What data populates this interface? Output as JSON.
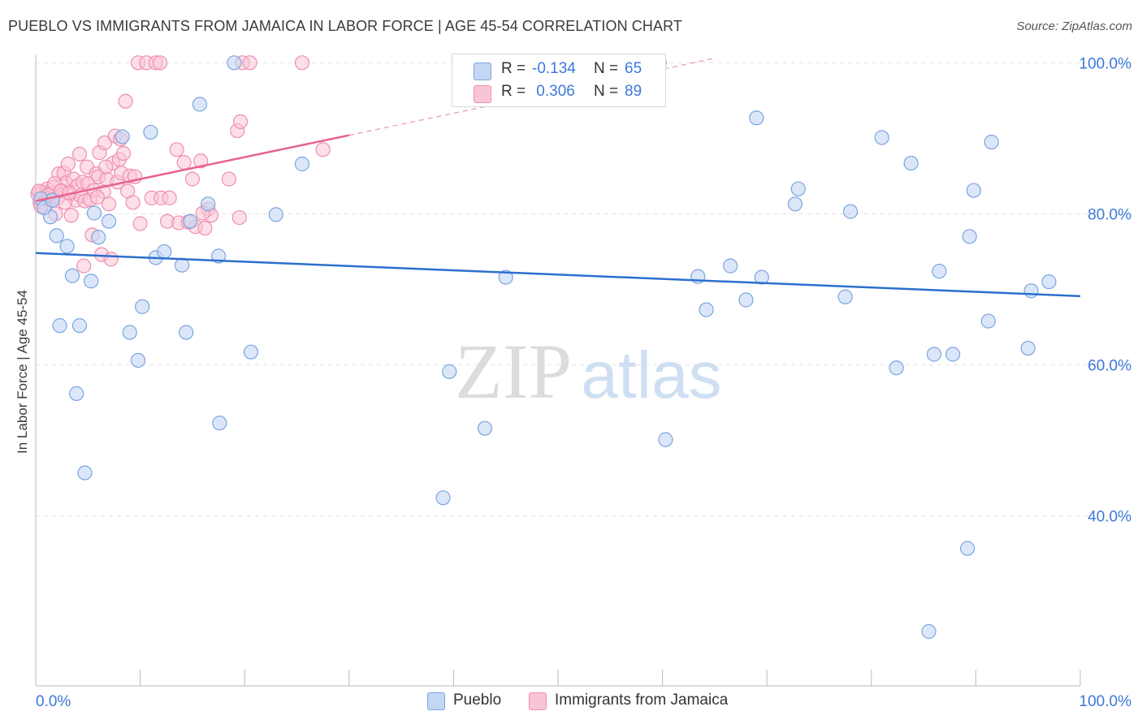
{
  "header": {
    "title": "PUEBLO VS IMMIGRANTS FROM JAMAICA IN LABOR FORCE | AGE 45-54 CORRELATION CHART",
    "source": "Source: ZipAtlas.com"
  },
  "watermark": {
    "zip": "ZIP",
    "atlas": "atlas"
  },
  "legend": {
    "items": [
      {
        "name": "Pueblo",
        "r_label": "R =",
        "r_value": "-0.134",
        "n_label": "N =",
        "n_value": "65"
      },
      {
        "name": "Immigrants from Jamaica",
        "r_label": "R =",
        "r_value": " 0.306",
        "n_label": "N =",
        "n_value": "89"
      }
    ]
  },
  "colors": {
    "pueblo_fill": "#c3d7f5",
    "pueblo_stroke": "#7ba4e0",
    "pueblo_line": "#2c6fce",
    "jamaica_fill": "#f9c5d5",
    "jamaica_stroke": "#ee8fae",
    "jamaica_line": "#e8638f",
    "axis_text": "#3c78d8",
    "grid": "#e3e3e3"
  },
  "chart_data": {
    "type": "scatter",
    "title": "PUEBLO VS IMMIGRANTS FROM JAMAICA IN LABOR FORCE | AGE 45-54 CORRELATION CHART",
    "xlabel": "",
    "ylabel": "In Labor Force | Age 45-54",
    "xlim": [
      0,
      100
    ],
    "ylim": [
      17.5,
      101
    ],
    "x_tick_labels": [
      "0.0%",
      "100.0%"
    ],
    "y_ticks": [
      40,
      60,
      80,
      100
    ],
    "y_tick_labels": [
      "40.0%",
      "60.0%",
      "80.0%",
      "100.0%"
    ],
    "grid": "horizontal dashed",
    "legend_position": "top-center",
    "series": [
      {
        "name": "Pueblo",
        "r": -0.134,
        "n": 65,
        "trend": {
          "x": [
            0,
            100
          ],
          "y": [
            74.8,
            69.1
          ]
        },
        "points": [
          [
            0.5,
            82.0
          ],
          [
            1.4,
            79.6
          ],
          [
            2.0,
            77.1
          ],
          [
            3.0,
            75.7
          ],
          [
            3.5,
            71.8
          ],
          [
            2.3,
            65.2
          ],
          [
            4.2,
            65.2
          ],
          [
            3.9,
            56.2
          ],
          [
            4.7,
            45.7
          ],
          [
            5.3,
            71.1
          ],
          [
            5.6,
            80.1
          ],
          [
            6.0,
            76.9
          ],
          [
            7.0,
            79.0
          ],
          [
            8.3,
            90.2
          ],
          [
            9.0,
            64.3
          ],
          [
            9.8,
            60.6
          ],
          [
            10.2,
            67.7
          ],
          [
            11.0,
            90.8
          ],
          [
            11.5,
            74.2
          ],
          [
            12.3,
            75.0
          ],
          [
            14.0,
            73.2
          ],
          [
            14.4,
            64.3
          ],
          [
            14.8,
            79.0
          ],
          [
            15.7,
            94.5
          ],
          [
            16.5,
            81.3
          ],
          [
            17.5,
            74.4
          ],
          [
            17.6,
            52.3
          ],
          [
            19.0,
            100.0
          ],
          [
            20.6,
            61.7
          ],
          [
            23.0,
            79.9
          ],
          [
            25.5,
            86.6
          ],
          [
            39.0,
            42.4
          ],
          [
            39.6,
            59.1
          ],
          [
            43.0,
            51.6
          ],
          [
            45.0,
            71.6
          ],
          [
            47.5,
            100.0
          ],
          [
            59.7,
            100.0
          ],
          [
            60.3,
            50.1
          ],
          [
            63.4,
            71.7
          ],
          [
            64.2,
            67.3
          ],
          [
            66.5,
            73.1
          ],
          [
            68.0,
            68.6
          ],
          [
            69.0,
            92.7
          ],
          [
            69.5,
            71.6
          ],
          [
            72.7,
            81.3
          ],
          [
            73.0,
            83.3
          ],
          [
            78.0,
            80.3
          ],
          [
            77.5,
            69.0
          ],
          [
            81.0,
            90.1
          ],
          [
            82.4,
            59.6
          ],
          [
            83.8,
            86.7
          ],
          [
            85.5,
            24.7
          ],
          [
            86.0,
            61.4
          ],
          [
            86.5,
            72.4
          ],
          [
            87.8,
            61.4
          ],
          [
            89.2,
            35.7
          ],
          [
            89.4,
            77.0
          ],
          [
            89.8,
            83.1
          ],
          [
            91.2,
            65.8
          ],
          [
            91.5,
            89.5
          ],
          [
            95.0,
            62.2
          ],
          [
            95.3,
            69.8
          ],
          [
            97.0,
            71.0
          ],
          [
            0.8,
            80.8
          ],
          [
            1.6,
            81.8
          ]
        ]
      },
      {
        "name": "Immigrants from Jamaica",
        "r": 0.306,
        "n": 89,
        "trend": {
          "x": [
            0,
            30
          ],
          "y": [
            81.7,
            90.4
          ]
        },
        "trend_extension": {
          "x": [
            30,
            65
          ],
          "y": [
            90.4,
            100.6
          ]
        },
        "points": [
          [
            0.2,
            82.6
          ],
          [
            0.4,
            81.5
          ],
          [
            0.6,
            82.9
          ],
          [
            0.8,
            80.9
          ],
          [
            1.0,
            82.1
          ],
          [
            1.1,
            83.3
          ],
          [
            1.3,
            81.9
          ],
          [
            1.5,
            82.7
          ],
          [
            1.7,
            83.5
          ],
          [
            1.9,
            80.0
          ],
          [
            2.1,
            82.1
          ],
          [
            2.2,
            85.3
          ],
          [
            2.5,
            83.1
          ],
          [
            2.7,
            85.4
          ],
          [
            2.9,
            84.1
          ],
          [
            3.1,
            86.6
          ],
          [
            3.3,
            82.6
          ],
          [
            3.4,
            79.8
          ],
          [
            3.6,
            84.6
          ],
          [
            3.8,
            81.8
          ],
          [
            4.0,
            83.7
          ],
          [
            4.2,
            87.9
          ],
          [
            4.3,
            82.4
          ],
          [
            4.5,
            84.2
          ],
          [
            4.7,
            81.7
          ],
          [
            4.9,
            86.2
          ],
          [
            5.0,
            84.0
          ],
          [
            5.2,
            81.9
          ],
          [
            5.4,
            77.2
          ],
          [
            5.6,
            83.1
          ],
          [
            5.8,
            85.3
          ],
          [
            6.0,
            84.9
          ],
          [
            6.1,
            88.1
          ],
          [
            6.3,
            74.6
          ],
          [
            6.5,
            82.9
          ],
          [
            6.6,
            89.4
          ],
          [
            6.8,
            84.6
          ],
          [
            7.0,
            81.3
          ],
          [
            7.2,
            74.0
          ],
          [
            7.4,
            86.7
          ],
          [
            7.6,
            90.3
          ],
          [
            7.8,
            84.2
          ],
          [
            8.0,
            87.2
          ],
          [
            8.2,
            85.4
          ],
          [
            8.4,
            88.0
          ],
          [
            8.6,
            94.9
          ],
          [
            8.8,
            83.0
          ],
          [
            9.0,
            85.0
          ],
          [
            9.3,
            81.5
          ],
          [
            9.8,
            100.0
          ],
          [
            10.0,
            78.7
          ],
          [
            10.6,
            100.0
          ],
          [
            11.1,
            82.1
          ],
          [
            11.5,
            100.0
          ],
          [
            12.0,
            82.1
          ],
          [
            12.6,
            79.0
          ],
          [
            12.8,
            82.1
          ],
          [
            13.7,
            78.8
          ],
          [
            14.2,
            86.8
          ],
          [
            15.0,
            84.6
          ],
          [
            15.3,
            78.3
          ],
          [
            15.8,
            87.0
          ],
          [
            16.2,
            78.1
          ],
          [
            16.5,
            80.6
          ],
          [
            16.8,
            79.8
          ],
          [
            18.5,
            84.6
          ],
          [
            19.5,
            79.5
          ],
          [
            19.3,
            91.0
          ],
          [
            19.6,
            92.2
          ],
          [
            19.8,
            100.0
          ],
          [
            20.5,
            100.0
          ],
          [
            25.5,
            100.0
          ],
          [
            27.5,
            88.5
          ],
          [
            0.3,
            83.0
          ],
          [
            0.5,
            81.0
          ],
          [
            1.2,
            82.5
          ],
          [
            1.8,
            84.0
          ],
          [
            2.4,
            83.0
          ],
          [
            2.8,
            81.5
          ],
          [
            3.2,
            82.8
          ],
          [
            4.6,
            73.1
          ],
          [
            5.9,
            82.2
          ],
          [
            6.7,
            86.2
          ],
          [
            8.1,
            89.9
          ],
          [
            9.5,
            84.9
          ],
          [
            11.9,
            100.0
          ],
          [
            13.5,
            88.5
          ],
          [
            14.6,
            78.9
          ],
          [
            16.0,
            80.1
          ]
        ]
      }
    ]
  }
}
